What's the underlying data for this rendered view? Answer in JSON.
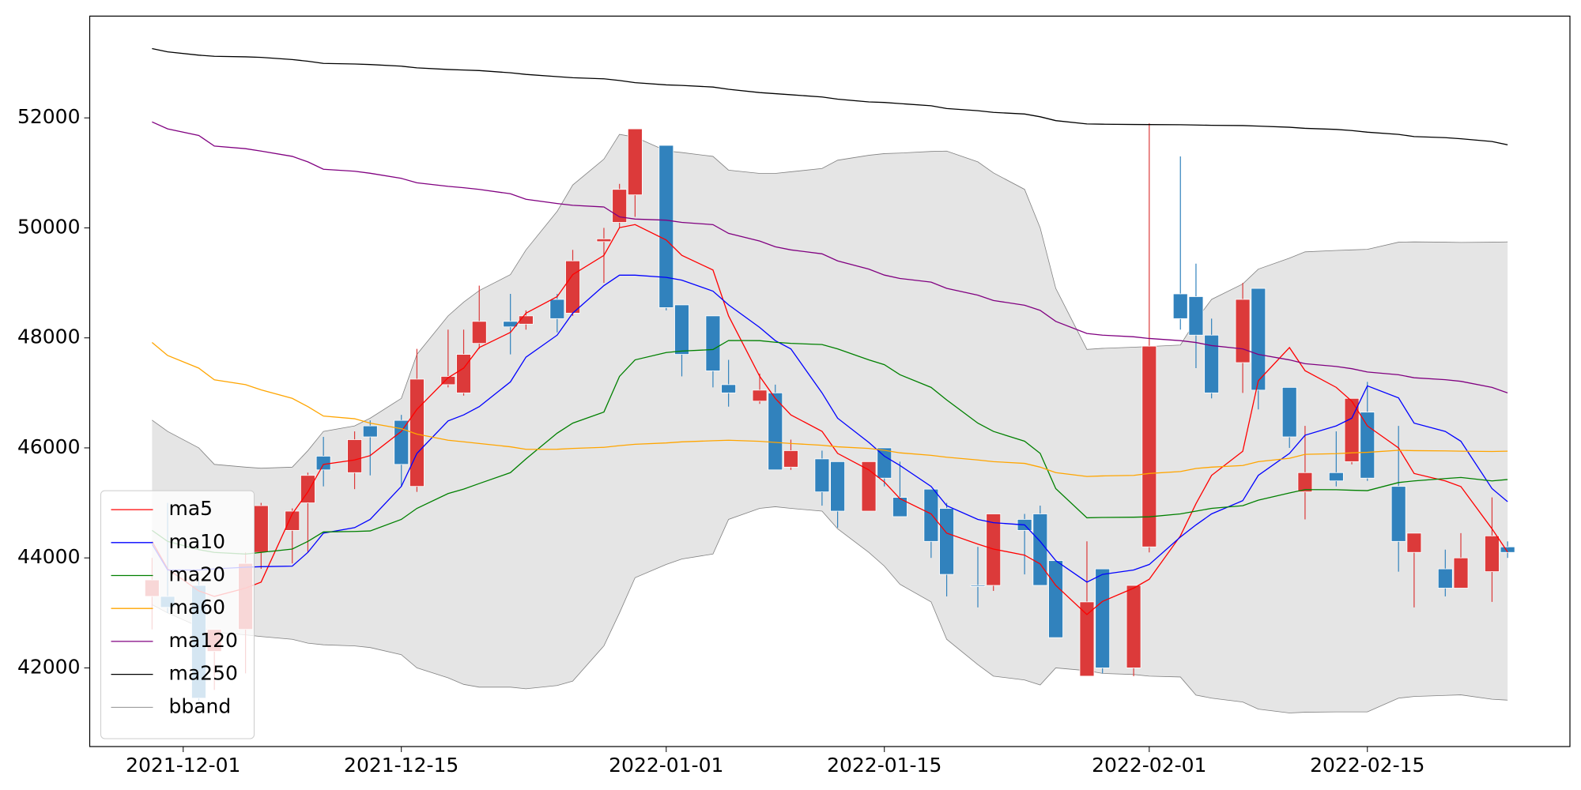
{
  "chart_data": {
    "type": "candlestick",
    "x": [
      "2021-11-29",
      "2021-11-30",
      "2021-12-02",
      "2021-12-03",
      "2021-12-05",
      "2021-12-06",
      "2021-12-08",
      "2021-12-09",
      "2021-12-10",
      "2021-12-12",
      "2021-12-13",
      "2021-12-15",
      "2021-12-16",
      "2021-12-18",
      "2021-12-19",
      "2021-12-20",
      "2021-12-22",
      "2021-12-23",
      "2021-12-25",
      "2021-12-26",
      "2021-12-28",
      "2021-12-29",
      "2021-12-30",
      "2022-01-01",
      "2022-01-02",
      "2022-01-04",
      "2022-01-05",
      "2022-01-07",
      "2022-01-08",
      "2022-01-09",
      "2022-01-11",
      "2022-01-12",
      "2022-01-14",
      "2022-01-15",
      "2022-01-16",
      "2022-01-18",
      "2022-01-19",
      "2022-01-21",
      "2022-01-22",
      "2022-01-24",
      "2022-01-25",
      "2022-01-26",
      "2022-01-28",
      "2022-01-29",
      "2022-01-31",
      "2022-02-01",
      "2022-02-03",
      "2022-02-04",
      "2022-02-05",
      "2022-02-07",
      "2022-02-08",
      "2022-02-10",
      "2022-02-11",
      "2022-02-13",
      "2022-02-14",
      "2022-02-15",
      "2022-02-17",
      "2022-02-18",
      "2022-02-20",
      "2022-02-21",
      "2022-02-23",
      "2022-02-24"
    ],
    "open": [
      43300,
      43300,
      43500,
      42300,
      42700,
      44100,
      44500,
      45000,
      45850,
      45550,
      46400,
      46500,
      45300,
      47150,
      47000,
      47900,
      48300,
      48250,
      48700,
      48450,
      49750,
      50100,
      50600,
      51500,
      48600,
      48400,
      47150,
      46850,
      47000,
      45650,
      45800,
      45750,
      44850,
      46000,
      45100,
      45250,
      44900,
      43500,
      43500,
      44700,
      44800,
      43950,
      41850,
      43800,
      42000,
      44200,
      48800,
      48750,
      48050,
      47550,
      48900,
      47100,
      45200,
      45550,
      45750,
      46650,
      45300,
      44100,
      43800,
      43450,
      43750,
      44200
    ],
    "high": [
      44000,
      45000,
      43600,
      42700,
      44100,
      45000,
      44900,
      45550,
      46200,
      46300,
      46500,
      46600,
      47800,
      48150,
      48150,
      48950,
      48800,
      48500,
      48800,
      49600,
      50000,
      50800,
      51800,
      51500,
      48600,
      48400,
      47600,
      47350,
      47150,
      46150,
      45950,
      45750,
      45750,
      46000,
      45750,
      45250,
      45000,
      44200,
      44800,
      44800,
      44950,
      43950,
      44300,
      43800,
      43500,
      51900,
      51300,
      49350,
      48350,
      49000,
      48900,
      47100,
      46400,
      46300,
      46900,
      47200,
      46400,
      44450,
      44150,
      44450,
      45100,
      44300
    ],
    "low": [
      42700,
      43000,
      41400,
      41600,
      41900,
      43800,
      43900,
      44100,
      45300,
      45250,
      45500,
      45300,
      45200,
      47100,
      46950,
      47800,
      47700,
      48150,
      48100,
      48400,
      49000,
      50000,
      50200,
      48500,
      47300,
      47100,
      46750,
      46800,
      45600,
      45600,
      44950,
      44550,
      44850,
      45300,
      44750,
      44000,
      43300,
      43100,
      43400,
      43700,
      43500,
      42550,
      41850,
      41900,
      41850,
      44100,
      48150,
      47450,
      46900,
      47000,
      46700,
      46000,
      44700,
      45300,
      45700,
      45400,
      43750,
      43100,
      43300,
      43450,
      43200,
      44000
    ],
    "close": [
      43600,
      43100,
      41450,
      42700,
      43900,
      44950,
      44850,
      45500,
      45600,
      46150,
      46200,
      45700,
      47250,
      47300,
      47700,
      48300,
      48200,
      48400,
      48350,
      49400,
      49800,
      50700,
      51800,
      48550,
      47700,
      47400,
      47000,
      47050,
      45600,
      45950,
      45200,
      44850,
      45750,
      45450,
      44750,
      44300,
      43700,
      43480,
      44800,
      44500,
      43500,
      42550,
      43200,
      42000,
      43500,
      47850,
      48350,
      48050,
      47000,
      48700,
      47050,
      46200,
      45550,
      45400,
      46900,
      45450,
      44300,
      44450,
      43450,
      44000,
      44400,
      44100
    ],
    "up_color": "#dc3a3a",
    "down_color": "#3182bd",
    "series": [
      {
        "name": "ma5",
        "color": "#ff0000",
        "values": [
          44300,
          43800,
          43400,
          43300,
          43450,
          43560,
          44800,
          45200,
          45700,
          45780,
          45860,
          46300,
          46700,
          47275,
          47450,
          47824,
          48100,
          48450,
          48750,
          49150,
          49500,
          50004,
          50060,
          49780,
          49500,
          49234,
          48400,
          47300,
          46900,
          46600,
          46300,
          45900,
          45600,
          45380,
          45077,
          44800,
          44450,
          44250,
          44161,
          44050,
          43890,
          43500,
          42970,
          43209,
          43450,
          43612,
          44400,
          44986,
          45500,
          45938,
          47220,
          47824,
          47403,
          47100,
          46850,
          46400,
          46000,
          45535,
          45400,
          45297,
          44528,
          44106
        ]
      },
      {
        "name": "ma10",
        "color": "#0000ff",
        "values": [
          44250,
          43780,
          43780,
          43800,
          43830,
          43840,
          43850,
          44100,
          44450,
          44550,
          44700,
          45300,
          45900,
          46490,
          46600,
          46750,
          47200,
          47650,
          48050,
          48450,
          48950,
          49140,
          49140,
          49100,
          49050,
          48850,
          48600,
          48190,
          47950,
          47800,
          47000,
          46540,
          46100,
          45850,
          45680,
          45300,
          44950,
          44700,
          44640,
          44600,
          44300,
          43950,
          43560,
          43700,
          43780,
          43880,
          44380,
          44600,
          44800,
          45040,
          45500,
          45900,
          46230,
          46400,
          46540,
          47128,
          46909,
          46450,
          46300,
          46121,
          45260,
          45022
        ]
      },
      {
        "name": "ma20",
        "color": "#008000",
        "values": [
          44500,
          44300,
          44150,
          44100,
          44070,
          44100,
          44161,
          44300,
          44472,
          44480,
          44490,
          44700,
          44900,
          45170,
          45250,
          45352,
          45550,
          45800,
          46268,
          46450,
          46652,
          47300,
          47600,
          47733,
          47760,
          47788,
          47953,
          47950,
          47920,
          47900,
          47879,
          47800,
          47600,
          47513,
          47330,
          47100,
          46872,
          46450,
          46300,
          46121,
          45900,
          45260,
          44729,
          44735,
          44740,
          44747,
          44800,
          44850,
          44900,
          44949,
          45050,
          45180,
          45242,
          45240,
          45230,
          45223,
          45370,
          45400,
          45443,
          45462,
          45400,
          45425
        ]
      },
      {
        "name": "ma60",
        "color": "#ffa500",
        "values": [
          47916,
          47680,
          47450,
          47238,
          47150,
          47055,
          46900,
          46750,
          46579,
          46530,
          46450,
          46350,
          46250,
          46139,
          46110,
          46080,
          46020,
          45974,
          45975,
          45990,
          46010,
          46040,
          46066,
          46090,
          46110,
          46130,
          46139,
          46120,
          46100,
          46080,
          46048,
          46020,
          45990,
          45956,
          45910,
          45864,
          45830,
          45780,
          45750,
          45718,
          45650,
          45550,
          45480,
          45490,
          45500,
          45535,
          45570,
          45626,
          45650,
          45680,
          45750,
          45810,
          45883,
          45895,
          45910,
          45919,
          45956,
          45950,
          45945,
          45940,
          45935,
          45940
        ]
      },
      {
        "name": "ma120",
        "color": "#800080",
        "values": [
          51927,
          51800,
          51680,
          51487,
          51440,
          51396,
          51300,
          51200,
          51066,
          51030,
          50993,
          50900,
          50820,
          50755,
          50730,
          50700,
          50620,
          50520,
          50443,
          50410,
          50380,
          50200,
          50160,
          50140,
          50100,
          50059,
          49900,
          49760,
          49656,
          49600,
          49528,
          49400,
          49250,
          49142,
          49080,
          49014,
          48900,
          48776,
          48680,
          48593,
          48500,
          48300,
          48080,
          48050,
          48020,
          47989,
          47950,
          47916,
          47860,
          47800,
          47700,
          47600,
          47531,
          47480,
          47440,
          47380,
          47330,
          47275,
          47240,
          47210,
          47100,
          47000
        ]
      },
      {
        "name": "ma250",
        "color": "#000000",
        "values": [
          53260,
          53200,
          53140,
          53120,
          53110,
          53100,
          53060,
          53030,
          52990,
          52980,
          52970,
          52940,
          52910,
          52880,
          52870,
          52860,
          52820,
          52790,
          52750,
          52730,
          52710,
          52680,
          52640,
          52600,
          52590,
          52560,
          52520,
          52460,
          52440,
          52420,
          52380,
          52340,
          52290,
          52280,
          52260,
          52220,
          52170,
          52130,
          52100,
          52070,
          52020,
          51950,
          51890,
          51885,
          51880,
          51878,
          51875,
          51870,
          51865,
          51860,
          51850,
          51830,
          51810,
          51790,
          51770,
          51740,
          51700,
          51660,
          51640,
          51620,
          51570,
          51510
        ]
      },
      {
        "name": "bband",
        "color": "#808080",
        "fill": "#e5e5e5",
        "values": [
          46505,
          46300,
          46000,
          45700,
          45650,
          45630,
          45650,
          45950,
          46300,
          46400,
          46540,
          46900,
          47700,
          48400,
          48650,
          48860,
          49150,
          49600,
          50300,
          50780,
          51250,
          51700,
          51650,
          51400,
          51370,
          51300,
          51050,
          50990,
          50990,
          51020,
          51080,
          51230,
          51320,
          51350,
          51360,
          51390,
          51396,
          51200,
          51000,
          50700,
          50000,
          48900,
          47790,
          47810,
          47830,
          47843,
          47870,
          48320,
          48700,
          48980,
          49250,
          49450,
          49564,
          49590,
          49600,
          49610,
          49740,
          49745,
          49740,
          49735,
          49740,
          49745
        ],
        "lower": [
          43150,
          43000,
          42750,
          42650,
          42600,
          42570,
          42520,
          42450,
          42420,
          42400,
          42370,
          42240,
          42000,
          41820,
          41700,
          41650,
          41650,
          41620,
          41680,
          41760,
          42400,
          43000,
          43640,
          43880,
          43980,
          44070,
          44700,
          44900,
          44930,
          44900,
          44850,
          44530,
          44100,
          43850,
          43520,
          43200,
          42520,
          42060,
          41850,
          41780,
          41690,
          42000,
          41950,
          41900,
          41880,
          41850,
          41835,
          41506,
          41450,
          41380,
          41250,
          41180,
          41194,
          41200,
          41200,
          41200,
          41450,
          41480,
          41500,
          41510,
          41430,
          41414
        ]
      }
    ],
    "xlim": [
      "2021-11-25",
      "2022-02-28"
    ],
    "xticks": [
      "2021-12-01",
      "2021-12-15",
      "2022-01-01",
      "2022-01-15",
      "2022-02-01",
      "2022-02-15"
    ],
    "ylim": [
      40570,
      53850
    ],
    "yticks": [
      42000,
      44000,
      46000,
      48000,
      50000,
      52000
    ],
    "legend": "lower left"
  }
}
